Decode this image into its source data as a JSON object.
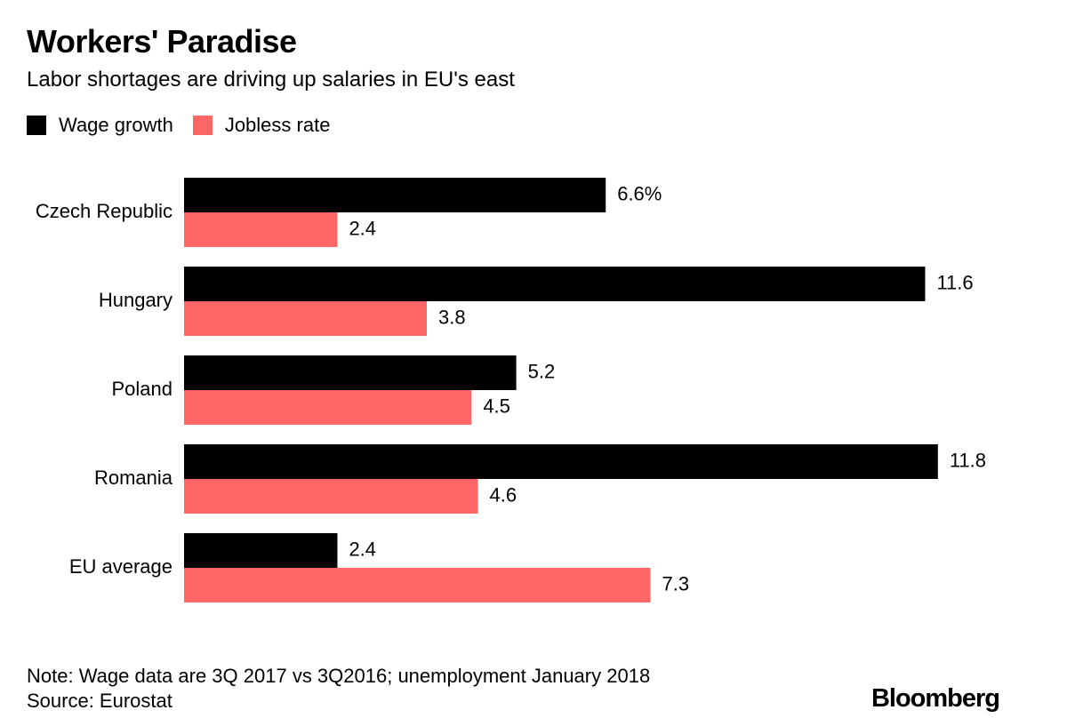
{
  "chart_data": {
    "type": "bar",
    "orientation": "horizontal",
    "title": "Workers' Paradise",
    "subtitle": "Labor shortages are driving up salaries in EU's east",
    "categories": [
      "Czech Republic",
      "Hungary",
      "Poland",
      "Romania",
      "EU average"
    ],
    "series": [
      {
        "name": "Wage growth",
        "color": "#000000",
        "values": [
          6.6,
          11.6,
          5.2,
          11.8,
          2.4
        ],
        "labels": [
          "6.6%",
          "11.6",
          "5.2",
          "11.8",
          "2.4"
        ]
      },
      {
        "name": "Jobless rate",
        "color": "#ff6666",
        "values": [
          2.4,
          3.8,
          4.5,
          4.6,
          7.3
        ],
        "labels": [
          "2.4",
          "3.8",
          "4.5",
          "4.6",
          "7.3"
        ]
      }
    ],
    "xlim": [
      0,
      11.8
    ],
    "grid": false,
    "legend_position": "top-left"
  },
  "footer": {
    "note": "Note: Wage data are 3Q 2017 vs 3Q2016; unemployment January 2018",
    "source": "Source: Eurostat",
    "brand": "Bloomberg"
  }
}
